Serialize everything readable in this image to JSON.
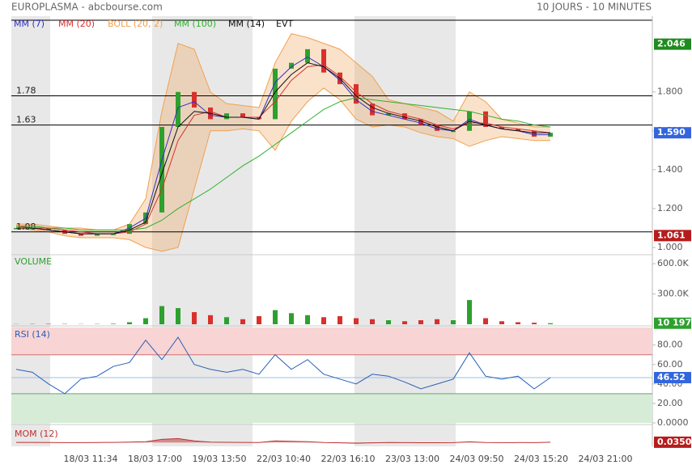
{
  "header": {
    "title": "EUROPLASMA - abcbourse.com",
    "period": "10 JOURS - 10 MINUTES"
  },
  "x_labels": [
    "18/03 11:34",
    "18/03 17:00",
    "19/03 13:50",
    "22/03 10:40",
    "22/03 16:10",
    "23/03 13:00",
    "24/03 09:50",
    "24/03 15:20",
    "24/03 21:00"
  ],
  "chart_data": [
    {
      "type": "candlestick",
      "up_color": "#2ea02e",
      "down_color": "#d9302c",
      "close": [
        1.1,
        1.1,
        1.09,
        1.07,
        1.06,
        1.07,
        1.07,
        1.12,
        1.18,
        1.62,
        1.8,
        1.72,
        1.66,
        1.69,
        1.67,
        1.66,
        1.92,
        1.95,
        2.02,
        1.9,
        1.84,
        1.74,
        1.68,
        1.69,
        1.66,
        1.63,
        1.6,
        1.6,
        1.7,
        1.62,
        1.61,
        1.6,
        1.57,
        1.59
      ],
      "series": [
        {
          "name": "MM (7)",
          "color": "#3030c8",
          "values": [
            1.1,
            1.1,
            1.09,
            1.08,
            1.07,
            1.07,
            1.07,
            1.1,
            1.15,
            1.45,
            1.72,
            1.75,
            1.68,
            1.67,
            1.67,
            1.66,
            1.85,
            1.93,
            1.98,
            1.93,
            1.86,
            1.76,
            1.7,
            1.68,
            1.66,
            1.64,
            1.61,
            1.6,
            1.66,
            1.63,
            1.61,
            1.6,
            1.58,
            1.58
          ]
        },
        {
          "name": "MM (20)",
          "color": "#d83030",
          "values": [
            1.11,
            1.1,
            1.1,
            1.09,
            1.08,
            1.07,
            1.07,
            1.08,
            1.12,
            1.3,
            1.55,
            1.68,
            1.7,
            1.67,
            1.67,
            1.67,
            1.75,
            1.86,
            1.93,
            1.94,
            1.88,
            1.8,
            1.74,
            1.7,
            1.68,
            1.66,
            1.63,
            1.61,
            1.64,
            1.64,
            1.62,
            1.61,
            1.6,
            1.59
          ]
        },
        {
          "name": "BOLL (20, 2)",
          "color": "#f0a050",
          "upper": [
            1.12,
            1.12,
            1.11,
            1.1,
            1.1,
            1.09,
            1.09,
            1.12,
            1.25,
            1.7,
            2.05,
            2.02,
            1.8,
            1.74,
            1.73,
            1.72,
            1.95,
            2.1,
            2.08,
            2.05,
            2.02,
            1.95,
            1.88,
            1.76,
            1.74,
            1.72,
            1.7,
            1.65,
            1.8,
            1.75,
            1.66,
            1.64,
            1.62,
            1.62
          ],
          "lower": [
            1.1,
            1.09,
            1.08,
            1.06,
            1.05,
            1.05,
            1.05,
            1.04,
            1.0,
            0.98,
            1.0,
            1.3,
            1.6,
            1.6,
            1.61,
            1.6,
            1.5,
            1.65,
            1.75,
            1.82,
            1.76,
            1.66,
            1.62,
            1.63,
            1.62,
            1.59,
            1.57,
            1.56,
            1.52,
            1.55,
            1.57,
            1.56,
            1.55,
            1.55
          ]
        },
        {
          "name": "MM (100)",
          "color": "#30b030",
          "values": [
            1.11,
            1.11,
            1.1,
            1.1,
            1.09,
            1.09,
            1.09,
            1.09,
            1.1,
            1.14,
            1.2,
            1.25,
            1.3,
            1.36,
            1.42,
            1.47,
            1.53,
            1.59,
            1.65,
            1.71,
            1.75,
            1.77,
            1.76,
            1.75,
            1.74,
            1.73,
            1.72,
            1.71,
            1.7,
            1.68,
            1.66,
            1.65,
            1.63,
            1.62
          ]
        },
        {
          "name": "MM (14)",
          "color": "#111111",
          "values": [
            1.1,
            1.1,
            1.09,
            1.08,
            1.07,
            1.07,
            1.07,
            1.09,
            1.13,
            1.38,
            1.62,
            1.7,
            1.69,
            1.67,
            1.67,
            1.66,
            1.8,
            1.89,
            1.95,
            1.93,
            1.87,
            1.78,
            1.72,
            1.69,
            1.67,
            1.65,
            1.62,
            1.6,
            1.65,
            1.63,
            1.61,
            1.6,
            1.59,
            1.59
          ]
        }
      ],
      "legend_extra": "EVT",
      "levels": [
        1.78,
        1.63,
        1.08
      ],
      "markers": [
        {
          "value": 2.046,
          "color": "#1e8c1e"
        },
        {
          "value": 1.59,
          "label": "1.590",
          "color": "#3366dd"
        },
        {
          "value": 1.061,
          "color": "#b71c1c"
        }
      ],
      "ylim": [
        0.975,
        2.19
      ],
      "yticks": [
        {
          "value": 1.0,
          "label": "1.000"
        },
        {
          "value": 1.2,
          "label": "1.200"
        },
        {
          "value": 1.4,
          "label": "1.400"
        },
        {
          "value": 1.6,
          "label": "1.600"
        },
        {
          "value": 1.8,
          "label": "1.800"
        }
      ]
    },
    {
      "type": "bar",
      "title": "VOLUME",
      "color": "#2ea02e",
      "values": [
        2000,
        3000,
        4000,
        3000,
        2000,
        3000,
        5000,
        20000,
        60000,
        180000,
        160000,
        120000,
        90000,
        70000,
        50000,
        80000,
        140000,
        110000,
        90000,
        70000,
        80000,
        60000,
        50000,
        40000,
        30000,
        40000,
        50000,
        40000,
        240000,
        60000,
        30000,
        20000,
        15000,
        10197
      ],
      "last": {
        "value": 10197,
        "label": "10 197",
        "color": "#2ea02e"
      },
      "ylim": [
        0,
        665000
      ],
      "yticks": [
        {
          "value": 300000,
          "label": "300.0K"
        },
        {
          "value": 600000,
          "label": "600.0K"
        }
      ]
    },
    {
      "type": "line",
      "title": "RSI (14)",
      "color": "#2860b8",
      "values": [
        55,
        52,
        40,
        30,
        45,
        48,
        58,
        62,
        85,
        65,
        88,
        60,
        55,
        52,
        55,
        50,
        70,
        55,
        65,
        50,
        45,
        40,
        50,
        48,
        42,
        35,
        40,
        45,
        72,
        48,
        45,
        48,
        35,
        46.52
      ],
      "bands": [
        70,
        30
      ],
      "last": {
        "value": 46.52,
        "color": "#3366dd"
      },
      "ylim": [
        0,
        98
      ],
      "yticks": [
        {
          "value": 0,
          "label": "0.0000"
        },
        {
          "value": 20,
          "label": "20.00"
        },
        {
          "value": 40,
          "label": "40.00"
        },
        {
          "value": 60,
          "label": "60.00"
        },
        {
          "value": 80,
          "label": "80.00"
        }
      ]
    },
    {
      "type": "area",
      "title": "MOM (12)",
      "color": "#c03030",
      "values": [
        0.01,
        0.01,
        0,
        -0.02,
        -0.02,
        0,
        0.01,
        0.05,
        0.1,
        0.4,
        0.5,
        0.2,
        0.05,
        0.02,
        0.01,
        0,
        0.2,
        0.15,
        0.1,
        0,
        -0.05,
        -0.1,
        -0.05,
        0,
        -0.02,
        -0.03,
        -0.03,
        -0.02,
        0.08,
        0,
        -0.02,
        -0.01,
        -0.02,
        0.035
      ],
      "last": {
        "value": 0.035,
        "label": "0.0350",
        "color": "#b71c1c"
      },
      "ylim": [
        -0.5,
        2.0
      ]
    }
  ]
}
